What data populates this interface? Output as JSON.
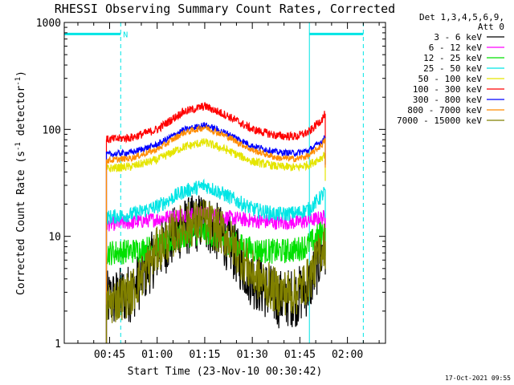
{
  "chart_data": {
    "type": "line",
    "title": "RHESSI Observing Summary Count Rates, Corrected",
    "xlabel": "Start Time (23-Nov-10 00:30:42)",
    "ylabel_prefix": "Corrected Count Rate (s",
    "ylabel_sup": "-1",
    "ylabel_mid": " detector",
    "ylabel_sup2": "-1",
    "ylabel_suffix": ")",
    "yscale": "log",
    "ylim": [
      1,
      1000
    ],
    "xlim_min": [
      30.7,
      132.0
    ],
    "x_ticks": [
      {
        "t": 45,
        "label": "00:45"
      },
      {
        "t": 60,
        "label": "01:00"
      },
      {
        "t": 75,
        "label": "01:15"
      },
      {
        "t": 90,
        "label": "01:30"
      },
      {
        "t": 105,
        "label": "01:45"
      },
      {
        "t": 120,
        "label": "02:00"
      }
    ],
    "y_ticks": [
      {
        "v": 1,
        "label": "1"
      },
      {
        "v": 10,
        "label": "10"
      },
      {
        "v": 100,
        "label": "100"
      },
      {
        "v": 1000,
        "label": "1000"
      }
    ],
    "data_start_min": 44,
    "data_end_min": 113,
    "night_markers": [
      {
        "t": 30.7,
        "color": "#00e5e5"
      },
      {
        "t": 48.5,
        "color": "#00e5e5",
        "label": "N"
      },
      {
        "t": 108.0,
        "color": "#00e5e5"
      },
      {
        "t": 125.0,
        "color": "#00e5e5"
      }
    ],
    "night_bars": [
      {
        "t0": 30.7,
        "t1": 48.5,
        "level": 780
      },
      {
        "t0": 108.0,
        "t1": 125.0,
        "level": 780
      }
    ],
    "legend_header": [
      "Det 1,3,4,5,6,9,",
      "Att 0"
    ],
    "series": [
      {
        "name": "3 - 6 keV",
        "color": "#000000",
        "times": [
          44,
          52,
          60,
          68,
          75,
          82,
          90,
          98,
          104,
          108,
          112,
          113
        ],
        "values": [
          2.5,
          3.0,
          7,
          12,
          14,
          9,
          4.0,
          2.6,
          2.7,
          3.5,
          7,
          8
        ],
        "noise": 0.28
      },
      {
        "name": "6 - 12 keV",
        "color": "#ff00ff",
        "times": [
          44,
          52,
          60,
          68,
          75,
          82,
          90,
          98,
          104,
          108,
          112,
          113
        ],
        "values": [
          13,
          13.5,
          14.5,
          16,
          16.5,
          15,
          14,
          13.5,
          13.5,
          14,
          15,
          15
        ],
        "noise": 0.07
      },
      {
        "name": "12 - 25 keV",
        "color": "#00e000",
        "times": [
          44,
          52,
          60,
          68,
          75,
          82,
          90,
          98,
          104,
          108,
          112,
          113
        ],
        "values": [
          7,
          7.3,
          8,
          10,
          11,
          9,
          7.5,
          7.2,
          7.5,
          8.5,
          11,
          12
        ],
        "noise": 0.12
      },
      {
        "name": "25 - 50 keV",
        "color": "#00e5e5",
        "times": [
          44,
          52,
          60,
          68,
          75,
          82,
          90,
          98,
          104,
          108,
          112,
          113
        ],
        "values": [
          15,
          16,
          19,
          26,
          30,
          24,
          18,
          16,
          16.5,
          18,
          24,
          27
        ],
        "noise": 0.07
      },
      {
        "name": "50 - 100 keV",
        "color": "#e5e500",
        "times": [
          44,
          52,
          60,
          68,
          75,
          82,
          90,
          98,
          104,
          108,
          112,
          113
        ],
        "values": [
          43,
          45,
          52,
          68,
          76,
          64,
          50,
          45,
          44,
          47,
          55,
          60
        ],
        "noise": 0.04
      },
      {
        "name": "100 - 300 keV",
        "color": "#ff0000",
        "times": [
          44,
          52,
          60,
          68,
          75,
          82,
          90,
          98,
          104,
          108,
          112,
          113
        ],
        "values": [
          80,
          84,
          100,
          145,
          165,
          135,
          100,
          87,
          86,
          95,
          125,
          140
        ],
        "noise": 0.04
      },
      {
        "name": "300 - 800 keV",
        "color": "#0000ff",
        "times": [
          44,
          52,
          60,
          68,
          75,
          82,
          90,
          98,
          104,
          108,
          112,
          113
        ],
        "values": [
          58,
          61,
          72,
          98,
          110,
          92,
          70,
          61,
          60,
          64,
          78,
          85
        ],
        "noise": 0.03
      },
      {
        "name": "800 - 7000 keV",
        "color": "#ff8c00",
        "times": [
          44,
          52,
          60,
          68,
          75,
          82,
          90,
          98,
          104,
          108,
          112,
          113
        ],
        "values": [
          51,
          54,
          65,
          92,
          105,
          86,
          64,
          54,
          53,
          57,
          72,
          80
        ],
        "noise": 0.03
      },
      {
        "name": "7000 - 15000 keV",
        "color": "#808000",
        "times": [
          44,
          52,
          60,
          68,
          75,
          82,
          90,
          98,
          104,
          108,
          112,
          113
        ],
        "values": [
          2.3,
          3.0,
          7.5,
          12.5,
          14,
          10,
          4.5,
          3.0,
          3.0,
          4.0,
          8,
          9
        ],
        "noise": 0.22
      }
    ]
  },
  "footer": {
    "timestamp": "17-Oct-2021 09:55"
  }
}
